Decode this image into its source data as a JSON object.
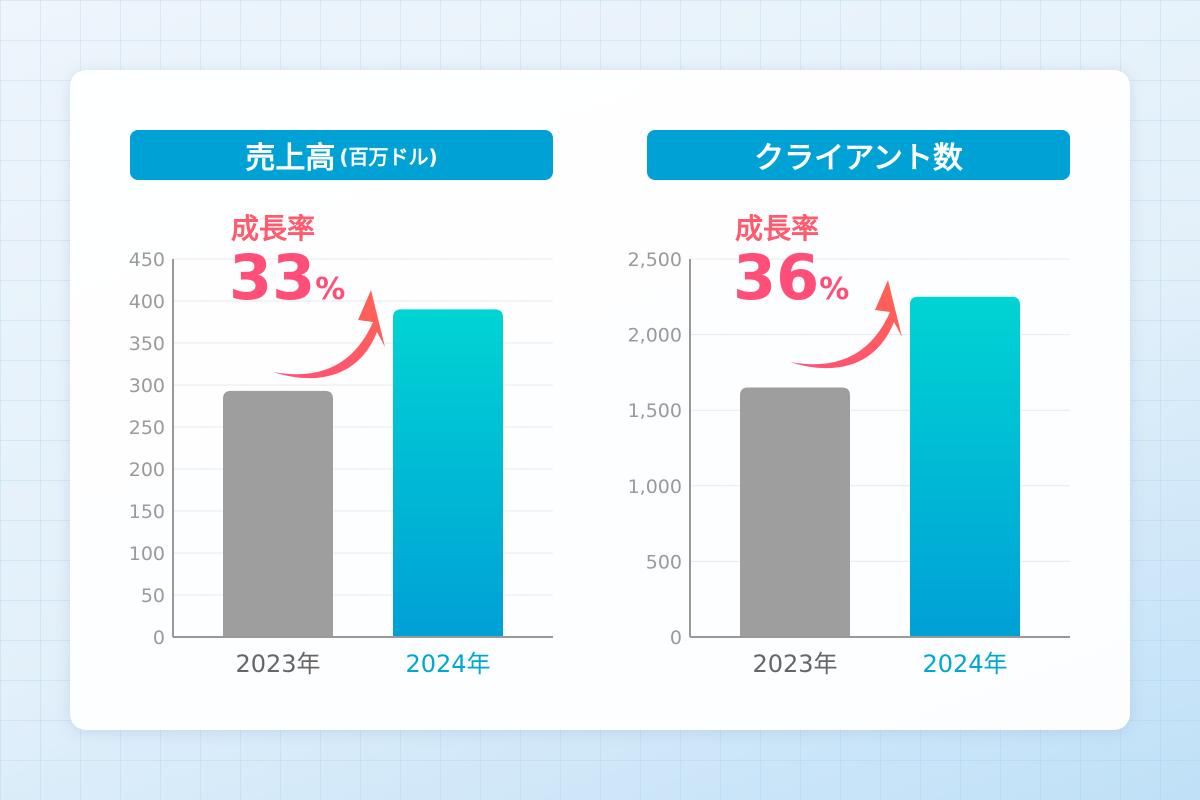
{
  "chart_data": [
    {
      "type": "bar",
      "title": "売上高",
      "title_unit": "(百万ドル)",
      "categories": [
        "2023年",
        "2024年"
      ],
      "values": [
        293,
        390
      ],
      "ylim": [
        0,
        450
      ],
      "yticks": [
        "0",
        "50",
        "100",
        "150",
        "200",
        "250",
        "300",
        "350",
        "400",
        "450"
      ],
      "grid": true,
      "annotation": {
        "label": "成長率",
        "value": "33",
        "unit": "%"
      },
      "colors": [
        "#9e9e9e",
        "#00d4d4"
      ]
    },
    {
      "type": "bar",
      "title": "クライアント数",
      "title_unit": "",
      "categories": [
        "2023年",
        "2024年"
      ],
      "values": [
        1650,
        2250
      ],
      "ylim": [
        0,
        2500
      ],
      "yticks": [
        "0",
        "500",
        "1,000",
        "1,500",
        "2,000",
        "2,500"
      ],
      "grid": true,
      "annotation": {
        "label": "成長率",
        "value": "36",
        "unit": "%"
      },
      "colors": [
        "#9e9e9e",
        "#00d4d4"
      ]
    }
  ],
  "colors": {
    "banner": "#00a2d6",
    "accent": "#ff5a6e",
    "bar_2024_bottom": "#00a0d6"
  }
}
